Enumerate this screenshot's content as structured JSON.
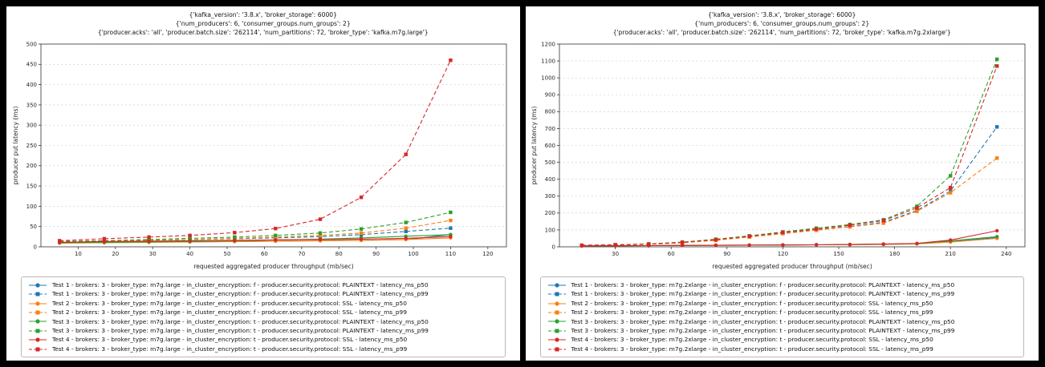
{
  "page": {
    "background": "#000000",
    "panel_background": "#ffffff"
  },
  "chart_data": [
    {
      "type": "line",
      "title_lines": [
        "{'kafka_version': '3.8.x', 'broker_storage': 6000}",
        "{'num_producers': 6, 'consumer_groups.num_groups': 2}",
        "{'producer.acks': 'all', 'producer.batch.size': '262114', 'num_partitions': 72, 'broker_type': 'kafka.m7g.large'}"
      ],
      "xlabel": "requested aggregated producer throughput (mb/sec)",
      "ylabel": "producer put latency (ms)",
      "xlim": [
        0,
        125
      ],
      "ylim": [
        0,
        500
      ],
      "xticks": [
        10,
        20,
        30,
        40,
        50,
        60,
        70,
        80,
        90,
        100,
        110,
        120
      ],
      "yticks": [
        0,
        50,
        100,
        150,
        200,
        250,
        300,
        350,
        400,
        450,
        500
      ],
      "grid": "horizontal-dashed",
      "legend_position": "below",
      "x": [
        5,
        17,
        29,
        40,
        52,
        63,
        75,
        86,
        98,
        110
      ],
      "series": [
        {
          "label": "Test 1 - brokers: 3 - broker_type: m7g.large - in_cluster_encryption: f - producer.security.protocol: PLAINTEXT - latency_ms_p50",
          "color": "#1f77b4",
          "line": "solid",
          "marker": "circle",
          "values": [
            10,
            11,
            12,
            12,
            13,
            14,
            15,
            16,
            18,
            30
          ]
        },
        {
          "label": "Test 1 - brokers: 3 - broker_type: m7g.large - in_cluster_encryption: f - producer.security.protocol: PLAINTEXT - latency_ms_p99",
          "color": "#1f77b4",
          "line": "dashed",
          "marker": "square",
          "values": [
            13,
            15,
            16,
            18,
            20,
            22,
            25,
            30,
            38,
            46
          ]
        },
        {
          "label": "Test 2 - brokers: 3 - broker_type: m7g.large - in_cluster_encryption: f - producer.security.protocol: SSL - latency_ms_p50",
          "color": "#ff7f0e",
          "line": "solid",
          "marker": "circle",
          "values": [
            9,
            10,
            11,
            12,
            13,
            14,
            15,
            16,
            18,
            22
          ]
        },
        {
          "label": "Test 2 - brokers: 3 - broker_type: m7g.large - in_cluster_encryption: f - producer.security.protocol: SSL - latency_ms_p99",
          "color": "#ff7f0e",
          "line": "dashed",
          "marker": "square",
          "values": [
            12,
            14,
            16,
            18,
            21,
            24,
            28,
            34,
            46,
            65
          ]
        },
        {
          "label": "Test 3 - brokers: 3 - broker_type: m7g.large - in_cluster_encryption: t - producer.security.protocol: PLAINTEXT - latency_ms_p50",
          "color": "#2ca02c",
          "line": "solid",
          "marker": "circle",
          "values": [
            10,
            11,
            12,
            13,
            15,
            17,
            19,
            22,
            26,
            30
          ]
        },
        {
          "label": "Test 3 - brokers: 3 - broker_type: m7g.large - in_cluster_encryption: t - producer.security.protocol: PLAINTEXT - latency_ms_p99",
          "color": "#2ca02c",
          "line": "dashed",
          "marker": "square",
          "values": [
            13,
            15,
            18,
            21,
            24,
            28,
            34,
            44,
            60,
            85
          ]
        },
        {
          "label": "Test 4 - brokers: 3 - broker_type: m7g.large - in_cluster_encryption: t - producer.security.protocol: SSL - latency_ms_p50",
          "color": "#d62728",
          "line": "solid",
          "marker": "circle",
          "values": [
            11,
            13,
            14,
            15,
            16,
            17,
            18,
            19,
            21,
            25
          ]
        },
        {
          "label": "Test 4 - brokers: 3 - broker_type: m7g.large - in_cluster_encryption: t - producer.security.protocol: SSL - latency_ms_p99",
          "color": "#d62728",
          "line": "dashed",
          "marker": "square",
          "values": [
            15,
            20,
            24,
            28,
            35,
            45,
            68,
            122,
            228,
            460
          ]
        }
      ]
    },
    {
      "type": "line",
      "title_lines": [
        "{'kafka_version': '3.8.x', 'broker_storage': 6000}",
        "{'num_producers': 6, 'consumer_groups.num_groups': 2}",
        "{'producer.acks': 'all', 'producer.batch.size': '262114', 'num_partitions': 72, 'broker_type': 'kafka.m7g.2xlarge'}"
      ],
      "xlabel": "requested aggregated producer throughput (mb/sec)",
      "ylabel": "producer put latency (ms)",
      "xlim": [
        0,
        250
      ],
      "ylim": [
        0,
        1200
      ],
      "xticks": [
        30,
        60,
        90,
        120,
        150,
        180,
        210,
        240
      ],
      "yticks": [
        0,
        100,
        200,
        300,
        400,
        500,
        600,
        700,
        800,
        900,
        1000,
        1100,
        1200
      ],
      "grid": "horizontal-dashed",
      "legend_position": "below",
      "x": [
        12,
        30,
        48,
        66,
        84,
        102,
        120,
        138,
        156,
        174,
        192,
        210,
        235
      ],
      "series": [
        {
          "label": "Test 1 - brokers: 3 - broker_type: m7g.2xlarge - in_cluster_encryption: f - producer.security.protocol: PLAINTEXT - latency_ms_p50",
          "color": "#1f77b4",
          "line": "solid",
          "marker": "circle",
          "values": [
            5,
            6,
            7,
            8,
            9,
            10,
            11,
            12,
            13,
            15,
            18,
            30,
            55
          ]
        },
        {
          "label": "Test 1 - brokers: 3 - broker_type: m7g.2xlarge - in_cluster_encryption: f - producer.security.protocol: PLAINTEXT - latency_ms_p99",
          "color": "#1f77b4",
          "line": "dashed",
          "marker": "square",
          "values": [
            8,
            11,
            15,
            25,
            40,
            60,
            80,
            100,
            120,
            145,
            215,
            330,
            710
          ]
        },
        {
          "label": "Test 2 - brokers: 3 - broker_type: m7g.2xlarge - in_cluster_encryption: f - producer.security.protocol: SSL - latency_ms_p50",
          "color": "#ff7f0e",
          "line": "solid",
          "marker": "circle",
          "values": [
            5,
            6,
            7,
            8,
            9,
            10,
            11,
            12,
            13,
            14,
            17,
            28,
            50
          ]
        },
        {
          "label": "Test 2 - brokers: 3 - broker_type: m7g.2xlarge - in_cluster_encryption: f - producer.security.protocol: SSL - latency_ms_p99",
          "color": "#ff7f0e",
          "line": "dashed",
          "marker": "square",
          "values": [
            8,
            11,
            15,
            24,
            38,
            58,
            78,
            98,
            118,
            140,
            210,
            320,
            525
          ]
        },
        {
          "label": "Test 3 - brokers: 3 - broker_type: m7g.2xlarge - in_cluster_encryption: t - producer.security.protocol: PLAINTEXT - latency_ms_p50",
          "color": "#2ca02c",
          "line": "solid",
          "marker": "circle",
          "values": [
            5,
            6,
            7,
            8,
            9,
            10,
            11,
            12,
            14,
            16,
            19,
            35,
            60
          ]
        },
        {
          "label": "Test 3 - brokers: 3 - broker_type: m7g.2xlarge - in_cluster_encryption: t - producer.security.protocol: PLAINTEXT - latency_ms_p99",
          "color": "#2ca02c",
          "line": "dashed",
          "marker": "square",
          "values": [
            9,
            12,
            17,
            28,
            45,
            65,
            88,
            110,
            132,
            160,
            240,
            420,
            1110
          ]
        },
        {
          "label": "Test 4 - brokers: 3 - broker_type: m7g.2xlarge - in_cluster_encryption: t - producer.security.protocol: SSL - latency_ms_p50",
          "color": "#d62728",
          "line": "solid",
          "marker": "circle",
          "values": [
            5,
            6,
            7,
            8,
            9,
            10,
            11,
            12,
            14,
            16,
            20,
            40,
            95
          ]
        },
        {
          "label": "Test 4 - brokers: 3 - broker_type: m7g.2xlarge - in_cluster_encryption: t - producer.security.protocol: SSL - latency_ms_p99",
          "color": "#d62728",
          "line": "dashed",
          "marker": "square",
          "values": [
            9,
            12,
            16,
            26,
            42,
            62,
            85,
            105,
            128,
            155,
            230,
            350,
            1070
          ]
        }
      ]
    }
  ]
}
